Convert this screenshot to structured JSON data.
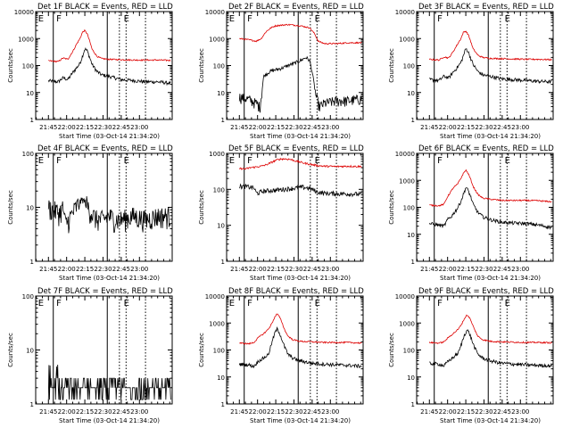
{
  "colors": {
    "events": "#000000",
    "lld": "#dd0000",
    "axes": "#000000",
    "background": "#ffffff"
  },
  "chart_data": [
    {
      "type": "line",
      "title": "Det 1F BLACK = Events, RED = LLD",
      "xlabel": "Start Time (03-Oct-14 21:34:20)",
      "ylabel": "Counts/sec",
      "x_ticks": [
        "21:45",
        "22:00",
        "22:15",
        "22:30",
        "22:45",
        "23:00"
      ],
      "y_ticks": [
        "1",
        "10",
        "100",
        "1000",
        "10000"
      ],
      "ylim": [
        1,
        10000
      ],
      "y_scale": "log",
      "region_labels": [
        "E",
        "F",
        "E"
      ],
      "series": [
        {
          "name": "Events",
          "color": "black",
          "x": [
            0,
            8,
            12,
            16,
            20,
            23,
            26,
            28,
            30,
            32,
            34,
            36,
            40,
            44,
            50,
            60,
            70,
            80,
            90,
            101
          ],
          "values": [
            27,
            25,
            35,
            30,
            55,
            80,
            120,
            220,
            420,
            350,
            200,
            110,
            60,
            45,
            40,
            30,
            28,
            25,
            25,
            22
          ]
        },
        {
          "name": "LLD",
          "color": "red",
          "x": [
            0,
            8,
            12,
            16,
            20,
            23,
            26,
            28,
            30,
            32,
            34,
            36,
            40,
            44,
            50,
            60,
            70,
            80,
            90,
            101
          ],
          "values": [
            150,
            140,
            190,
            170,
            330,
            600,
            1000,
            1700,
            2000,
            1500,
            800,
            400,
            220,
            180,
            170,
            165,
            160,
            160,
            160,
            155
          ]
        }
      ]
    },
    {
      "type": "line",
      "title": "Det 2F BLACK = Events, RED = LLD",
      "xlabel": "Start Time (03-Oct-14 21:34:20)",
      "ylabel": "Counts/sec",
      "x_ticks": [
        "21:45",
        "22:00",
        "22:15",
        "22:30",
        "22:45",
        "23:00"
      ],
      "y_ticks": [
        "1",
        "10",
        "100",
        "1000",
        "10000"
      ],
      "ylim": [
        1,
        10000
      ],
      "y_scale": "log",
      "region_labels": [
        "E",
        "F",
        "E"
      ],
      "series": [
        {
          "name": "Events",
          "color": "black",
          "x": [
            0,
            6,
            10,
            14,
            17,
            18.5,
            20,
            25,
            30,
            35,
            40,
            45,
            50,
            55,
            58,
            60,
            63,
            66,
            70,
            80,
            90,
            101
          ],
          "values": [
            7,
            6,
            5,
            4,
            3,
            10,
            40,
            60,
            70,
            80,
            100,
            120,
            150,
            200,
            150,
            60,
            8,
            3,
            4,
            5,
            5,
            6
          ]
        },
        {
          "name": "LLD",
          "color": "red",
          "x": [
            0,
            8,
            14,
            18,
            22,
            26,
            30,
            40,
            50,
            58,
            62,
            65,
            70,
            80,
            90,
            101
          ],
          "values": [
            1000,
            900,
            800,
            1000,
            1800,
            2500,
            3000,
            3300,
            3000,
            2500,
            1500,
            800,
            650,
            650,
            700,
            700
          ]
        }
      ]
    },
    {
      "type": "line",
      "title": "Det 3F BLACK = Events, RED = LLD",
      "xlabel": "Start Time (03-Oct-14 21:34:20)",
      "ylabel": "Counts/sec",
      "x_ticks": [
        "21:45",
        "22:00",
        "22:15",
        "22:30",
        "22:45",
        "23:00"
      ],
      "y_ticks": [
        "1",
        "10",
        "100",
        "1000",
        "10000"
      ],
      "ylim": [
        1,
        10000
      ],
      "y_scale": "log",
      "region_labels": [
        "F",
        "E"
      ],
      "series": [
        {
          "name": "Events",
          "color": "black",
          "x": [
            0,
            8,
            12,
            16,
            20,
            23,
            26,
            28,
            30,
            32,
            34,
            36,
            40,
            44,
            50,
            60,
            70,
            80,
            90,
            101
          ],
          "values": [
            30,
            28,
            40,
            35,
            60,
            85,
            130,
            230,
            430,
            330,
            190,
            110,
            60,
            45,
            40,
            32,
            30,
            28,
            26,
            25
          ]
        },
        {
          "name": "LLD",
          "color": "red",
          "x": [
            0,
            8,
            12,
            16,
            20,
            23,
            26,
            28,
            30,
            32,
            34,
            36,
            40,
            44,
            50,
            60,
            70,
            80,
            90,
            101
          ],
          "values": [
            170,
            160,
            210,
            190,
            350,
            600,
            1000,
            1700,
            1900,
            1400,
            800,
            420,
            240,
            200,
            185,
            180,
            175,
            170,
            170,
            165
          ]
        }
      ]
    },
    {
      "type": "line",
      "title": "Det 4F BLACK = Events, RED = LLD",
      "xlabel": "Start Time (03-Oct-14 21:34:20)",
      "ylabel": "Counts/sec",
      "x_ticks": [
        "21:45",
        "22:00",
        "22:15",
        "22:30",
        "22:45",
        "23:00"
      ],
      "y_ticks": [
        "1",
        "10",
        "100"
      ],
      "ylim": [
        1,
        100
      ],
      "y_scale": "log",
      "region_labels": [
        "E",
        "F",
        "E"
      ],
      "series": [
        {
          "name": "Events",
          "color": "black",
          "x": [
            0,
            5,
            9,
            12,
            14,
            17,
            20,
            24,
            28,
            31,
            34,
            37,
            40,
            45,
            50,
            55,
            60,
            70,
            80,
            90,
            101
          ],
          "values": [
            10,
            9,
            8,
            10,
            5,
            6,
            8,
            11,
            14,
            12,
            9,
            7,
            6,
            6,
            7,
            6,
            6,
            7,
            6,
            7,
            7
          ]
        }
      ]
    },
    {
      "type": "line",
      "title": "Det 5F BLACK = Events, RED = LLD",
      "xlabel": "Start Time (03-Oct-14 21:34:20)",
      "ylabel": "Counts/sec",
      "x_ticks": [
        "21:45",
        "22:00",
        "22:15",
        "22:30",
        "22:45",
        "23:00"
      ],
      "y_ticks": [
        "1",
        "10",
        "100",
        "1000"
      ],
      "ylim": [
        1,
        1000
      ],
      "y_scale": "log",
      "region_labels": [
        "E",
        "F",
        "E"
      ],
      "series": [
        {
          "name": "Events",
          "color": "black",
          "x": [
            0,
            5,
            9,
            12,
            14,
            16,
            19,
            24,
            30,
            36,
            42,
            48,
            52,
            56,
            60,
            64,
            70,
            80,
            90,
            101
          ],
          "values": [
            120,
            120,
            115,
            110,
            80,
            80,
            88,
            92,
            95,
            100,
            105,
            110,
            115,
            110,
            100,
            85,
            78,
            76,
            75,
            73
          ]
        },
        {
          "name": "LLD",
          "color": "red",
          "x": [
            0,
            5,
            9,
            14,
            18,
            22,
            26,
            30,
            34,
            38,
            42,
            46,
            52,
            58,
            64,
            70,
            80,
            90,
            101
          ],
          "values": [
            380,
            370,
            400,
            420,
            440,
            480,
            550,
            640,
            700,
            700,
            680,
            620,
            550,
            500,
            460,
            440,
            430,
            440,
            430
          ]
        }
      ]
    },
    {
      "type": "line",
      "title": "Det 6F BLACK = Events, RED = LLD",
      "xlabel": "Start Time (03-Oct-14 21:34:20)",
      "ylabel": "Counts/sec",
      "x_ticks": [
        "21:45",
        "22:00",
        "22:15",
        "22:30",
        "22:45",
        "23:00"
      ],
      "y_ticks": [
        "1",
        "10",
        "100",
        "1000",
        "10000"
      ],
      "ylim": [
        1,
        10000
      ],
      "y_scale": "log",
      "region_labels": [
        "F",
        "E"
      ],
      "series": [
        {
          "name": "Events",
          "color": "black",
          "x": [
            0,
            8,
            12,
            15,
            18,
            20,
            23,
            26,
            28,
            30,
            32,
            34,
            36,
            40,
            44,
            50,
            60,
            70,
            80,
            90,
            101
          ],
          "values": [
            25,
            22,
            20,
            35,
            45,
            60,
            90,
            170,
            300,
            550,
            420,
            250,
            130,
            65,
            45,
            35,
            28,
            26,
            25,
            22,
            18
          ]
        },
        {
          "name": "LLD",
          "color": "red",
          "x": [
            0,
            8,
            12,
            15,
            18,
            20,
            23,
            26,
            28,
            30,
            32,
            34,
            36,
            40,
            44,
            50,
            60,
            70,
            80,
            90,
            101
          ],
          "values": [
            120,
            115,
            130,
            250,
            400,
            550,
            700,
            1200,
            1800,
            2400,
            1800,
            1100,
            600,
            300,
            220,
            200,
            180,
            180,
            180,
            175,
            160
          ]
        }
      ]
    },
    {
      "type": "line",
      "title": "Det 7F BLACK = Events, RED = LLD",
      "xlabel": "Start Time (03-Oct-14 21:34:20)",
      "ylabel": "Counts/sec",
      "x_ticks": [
        "21:45",
        "22:00",
        "22:15",
        "22:30",
        "22:45",
        "23:00"
      ],
      "y_ticks": [
        "1",
        "10",
        "100"
      ],
      "ylim": [
        1,
        100
      ],
      "y_scale": "log",
      "region_labels": [
        "E",
        "F",
        "E"
      ],
      "series": [
        {
          "name": "Events",
          "color": "black",
          "x": [
            0,
            4,
            8,
            12,
            16,
            20,
            30,
            40,
            50,
            60,
            70,
            80,
            90,
            101
          ],
          "values": [
            4,
            3,
            4,
            3,
            2,
            2.5,
            2,
            2.5,
            2,
            2,
            2.5,
            2,
            2,
            2
          ]
        }
      ]
    },
    {
      "type": "line",
      "title": "Det 8F BLACK = Events, RED = LLD",
      "xlabel": "Start Time (03-Oct-14 21:34:20)",
      "ylabel": "Counts/sec",
      "x_ticks": [
        "21:45",
        "22:00",
        "22:15",
        "22:30",
        "22:45",
        "23:00"
      ],
      "y_ticks": [
        "1",
        "10",
        "100",
        "1000",
        "10000"
      ],
      "ylim": [
        1,
        10000
      ],
      "y_scale": "log",
      "region_labels": [
        "E",
        "F",
        "E"
      ],
      "series": [
        {
          "name": "Events",
          "color": "black",
          "x": [
            0,
            8,
            12,
            16,
            20,
            24,
            27,
            29,
            31,
            33,
            35,
            37,
            40,
            44,
            50,
            60,
            70,
            80,
            90,
            101
          ],
          "values": [
            30,
            28,
            25,
            40,
            50,
            70,
            200,
            400,
            600,
            450,
            250,
            140,
            70,
            50,
            40,
            32,
            30,
            28,
            27,
            25
          ]
        },
        {
          "name": "LLD",
          "color": "red",
          "x": [
            0,
            8,
            12,
            16,
            20,
            24,
            27,
            29,
            31,
            33,
            35,
            37,
            40,
            44,
            50,
            60,
            70,
            80,
            90,
            101
          ],
          "values": [
            180,
            170,
            190,
            300,
            400,
            600,
            1000,
            1600,
            2200,
            1700,
            1100,
            600,
            330,
            240,
            210,
            200,
            190,
            190,
            190,
            180
          ]
        }
      ]
    },
    {
      "type": "line",
      "title": "Det 9F BLACK = Events, RED = LLD",
      "xlabel": "Start Time (03-Oct-14 21:34:20)",
      "ylabel": "Counts/sec",
      "x_ticks": [
        "21:45",
        "22:00",
        "22:15",
        "22:30",
        "22:45",
        "23:00"
      ],
      "y_ticks": [
        "1",
        "10",
        "100",
        "1000",
        "10000"
      ],
      "ylim": [
        1,
        10000
      ],
      "y_scale": "log",
      "region_labels": [
        "F",
        "E"
      ],
      "series": [
        {
          "name": "Events",
          "color": "black",
          "x": [
            0,
            8,
            12,
            16,
            20,
            24,
            27,
            29,
            31,
            33,
            35,
            37,
            40,
            44,
            50,
            60,
            70,
            80,
            90,
            101
          ],
          "values": [
            32,
            30,
            26,
            40,
            55,
            80,
            200,
            380,
            550,
            420,
            230,
            130,
            70,
            50,
            40,
            32,
            30,
            28,
            27,
            26
          ]
        },
        {
          "name": "LLD",
          "color": "red",
          "x": [
            0,
            8,
            12,
            16,
            20,
            24,
            27,
            29,
            31,
            33,
            35,
            37,
            40,
            44,
            50,
            60,
            70,
            80,
            90,
            101
          ],
          "values": [
            190,
            180,
            200,
            300,
            420,
            600,
            1000,
            1500,
            2000,
            1600,
            1000,
            600,
            320,
            240,
            210,
            200,
            195,
            190,
            190,
            185
          ]
        }
      ]
    }
  ]
}
